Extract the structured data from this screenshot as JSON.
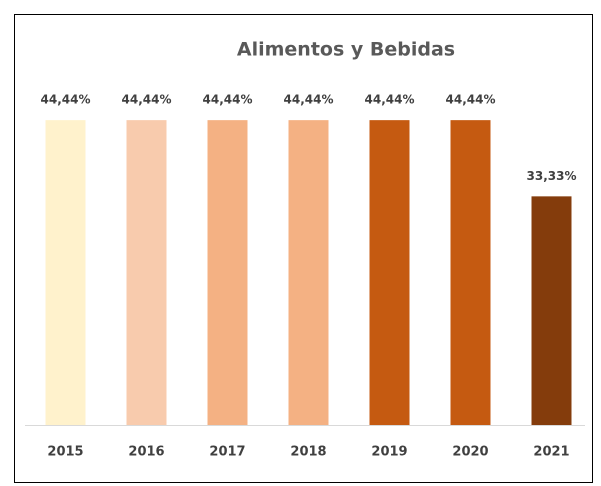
{
  "chart_data": {
    "type": "bar",
    "title": "Alimentos y Bebidas",
    "categories": [
      "2015",
      "2016",
      "2017",
      "2018",
      "2019",
      "2020",
      "2021"
    ],
    "values": [
      44.44,
      44.44,
      44.44,
      44.44,
      44.44,
      44.44,
      33.33
    ],
    "value_labels": [
      "44,44%",
      "44,44%",
      "44,44%",
      "44,44%",
      "44,44%",
      "44,44%",
      "33,33%"
    ],
    "colors": [
      "#FFF2CC",
      "#F8CBAD",
      "#F4B183",
      "#F4B183",
      "#C55A11",
      "#C55A11",
      "#843C0C"
    ],
    "ylim": [
      0,
      50
    ]
  }
}
